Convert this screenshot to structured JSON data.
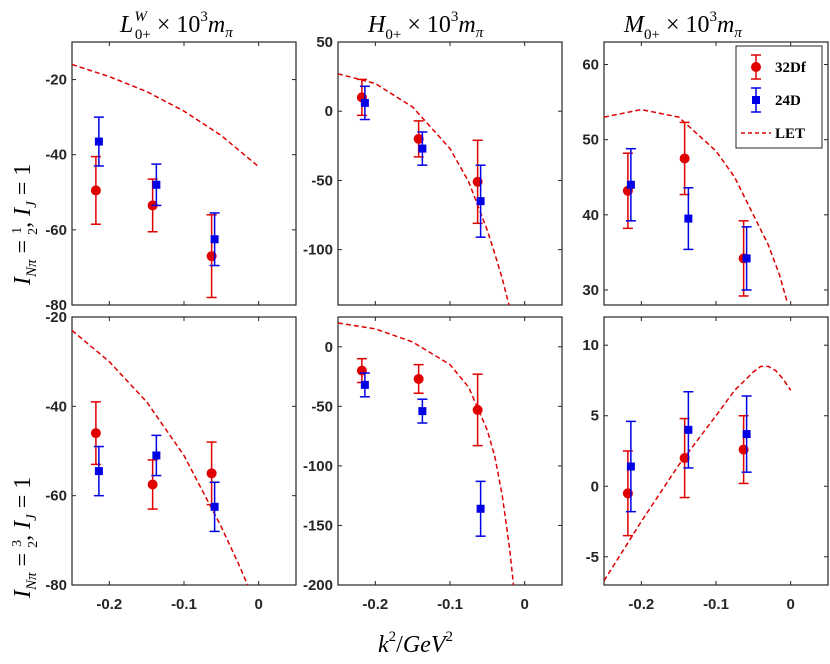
{
  "colors": {
    "red": "#e00000",
    "blue": "#0000e6",
    "axis": "#262626"
  },
  "titles": {
    "col1": {
      "main": "L",
      "sup": "W",
      "sub": "0+",
      "rest": " × 10",
      "exp": "3",
      "m": "m",
      "msub": "π"
    },
    "col2": {
      "main": "H",
      "sub": "0+",
      "rest": " × 10",
      "exp": "3",
      "m": "m",
      "msub": "π"
    },
    "col3": {
      "main": "M",
      "sub": "0+",
      "rest": " × 10",
      "exp": "3",
      "m": "m",
      "msub": "π"
    }
  },
  "row_labels": {
    "row1": {
      "I": "I",
      "sub": "Nπ",
      "eq": " = ",
      "num": "1",
      "den": "2",
      "rest": ", ",
      "I2": "I",
      "sub2": "J",
      "eq2": " = 1"
    },
    "row2": {
      "I": "I",
      "sub": "Nπ",
      "eq": " = ",
      "num": "3",
      "den": "2",
      "rest": ", ",
      "I2": "I",
      "sub2": "J",
      "eq2": " = 1"
    }
  },
  "xlabel": {
    "k": "k",
    "exp": "2",
    "slash": "/",
    "gev": "GeV",
    "exp2": "2"
  },
  "legend": {
    "items": [
      {
        "label": "32Df",
        "color": "red",
        "marker": "circle"
      },
      {
        "label": "24D",
        "color": "blue",
        "marker": "square"
      },
      {
        "label": "LET",
        "color": "red",
        "marker": "dashed-line"
      }
    ]
  },
  "chart_data": [
    {
      "type": "scatter",
      "id": "L_half",
      "xlim": [
        -0.25,
        0.05
      ],
      "ylim": [
        -80,
        -10
      ],
      "xticks": [
        -0.2,
        -0.1,
        0
      ],
      "xtick_labels": [
        "-0.2",
        "-0.1",
        "0"
      ],
      "show_xtick_labels": false,
      "yticks": [
        -20,
        -40,
        -60,
        -80
      ],
      "ytick_labels": [
        "-20",
        "-40",
        "-60",
        "-80"
      ],
      "series": [
        {
          "name": "32Df",
          "x": [
            -0.218,
            -0.142,
            -0.063
          ],
          "y": [
            -49.5,
            -53.5,
            -67
          ],
          "err_lo": [
            9,
            7,
            11
          ],
          "err_hi": [
            9,
            7,
            11
          ]
        },
        {
          "name": "24D",
          "x": [
            -0.214,
            -0.137,
            -0.059
          ],
          "y": [
            -36.5,
            -48,
            -62.5
          ],
          "err_lo": [
            6.5,
            5.5,
            7
          ],
          "err_hi": [
            6.5,
            5.5,
            7
          ]
        }
      ],
      "let": {
        "x": [
          -0.25,
          -0.2,
          -0.15,
          -0.1,
          -0.05,
          0
        ],
        "y": [
          -16,
          -19.2,
          -23.2,
          -28.4,
          -34.9,
          -43.2
        ]
      }
    },
    {
      "type": "scatter",
      "id": "H_half",
      "xlim": [
        -0.25,
        0.05
      ],
      "ylim": [
        -140,
        50
      ],
      "xticks": [
        -0.2,
        -0.1,
        0
      ],
      "xtick_labels": [
        "-0.2",
        "-0.1",
        "0"
      ],
      "show_xtick_labels": false,
      "yticks": [
        50,
        0,
        -50,
        -100
      ],
      "ytick_labels": [
        "50",
        "0",
        "-50",
        "-100"
      ],
      "series": [
        {
          "name": "32Df",
          "x": [
            -0.218,
            -0.142,
            -0.063
          ],
          "y": [
            10,
            -20,
            -51
          ],
          "err_lo": [
            13,
            13,
            30
          ],
          "err_hi": [
            13,
            13,
            30
          ]
        },
        {
          "name": "24D",
          "x": [
            -0.214,
            -0.137,
            -0.059
          ],
          "y": [
            6,
            -27,
            -65
          ],
          "err_lo": [
            12,
            12,
            26
          ],
          "err_hi": [
            12,
            12,
            26
          ]
        }
      ],
      "let": {
        "x": [
          -0.25,
          -0.2,
          -0.15,
          -0.1,
          -0.075,
          -0.05,
          -0.04,
          -0.03,
          -0.02
        ],
        "y": [
          27,
          20,
          3,
          -27,
          -51,
          -86,
          -103,
          -121,
          -142
        ]
      }
    },
    {
      "type": "scatter",
      "id": "M_half",
      "xlim": [
        -0.25,
        0.05
      ],
      "ylim": [
        28,
        63
      ],
      "xticks": [
        -0.2,
        -0.1,
        0
      ],
      "xtick_labels": [
        "-0.2",
        "-0.1",
        "0"
      ],
      "show_xtick_labels": false,
      "yticks": [
        60,
        50,
        40,
        30
      ],
      "ytick_labels": [
        "60",
        "50",
        "40",
        "30"
      ],
      "series": [
        {
          "name": "32Df",
          "x": [
            -0.218,
            -0.142,
            -0.063
          ],
          "y": [
            43.2,
            47.5,
            34.2
          ],
          "err_lo": [
            5,
            4.8,
            5
          ],
          "err_hi": [
            5,
            4.8,
            5
          ]
        },
        {
          "name": "24D",
          "x": [
            -0.214,
            -0.137,
            -0.059
          ],
          "y": [
            44,
            39.5,
            34.2
          ],
          "err_lo": [
            4.8,
            4.1,
            4.2
          ],
          "err_hi": [
            4.8,
            4.1,
            4.2
          ]
        }
      ],
      "let": {
        "x": [
          -0.25,
          -0.2,
          -0.15,
          -0.1,
          -0.075,
          -0.05,
          -0.03,
          -0.015,
          -0.005
        ],
        "y": [
          53,
          54,
          53,
          48.5,
          45,
          40,
          36,
          32,
          28.5
        ]
      }
    },
    {
      "type": "scatter",
      "id": "L_3half",
      "xlim": [
        -0.25,
        0.05
      ],
      "ylim": [
        -80,
        -20
      ],
      "xticks": [
        -0.2,
        -0.1,
        0
      ],
      "xtick_labels": [
        "-0.2",
        "-0.1",
        "0"
      ],
      "show_xtick_labels": true,
      "yticks": [
        -20,
        -40,
        -60,
        -80
      ],
      "ytick_labels": [
        "-20",
        "-40",
        "-60",
        "-80"
      ],
      "series": [
        {
          "name": "32Df",
          "x": [
            -0.218,
            -0.142,
            -0.063
          ],
          "y": [
            -46,
            -57.5,
            -55
          ],
          "err_lo": [
            7,
            5.5,
            7
          ],
          "err_hi": [
            7,
            5.5,
            7
          ]
        },
        {
          "name": "24D",
          "x": [
            -0.214,
            -0.137,
            -0.059
          ],
          "y": [
            -54.5,
            -51,
            -62.5
          ],
          "err_lo": [
            5.5,
            4.5,
            5.5
          ],
          "err_hi": [
            5.5,
            4.5,
            5.5
          ]
        }
      ],
      "let": {
        "x": [
          -0.25,
          -0.2,
          -0.15,
          -0.1,
          -0.05,
          -0.025,
          -0.015
        ],
        "y": [
          -23,
          -30,
          -39,
          -51,
          -67,
          -76,
          -80
        ]
      }
    },
    {
      "type": "scatter",
      "id": "H_3half",
      "xlim": [
        -0.25,
        0.05
      ],
      "ylim": [
        -200,
        25
      ],
      "xticks": [
        -0.2,
        -0.1,
        0
      ],
      "xtick_labels": [
        "-0.2",
        "-0.1",
        "0"
      ],
      "show_xtick_labels": true,
      "yticks": [
        0,
        -50,
        -100,
        -150,
        -200
      ],
      "ytick_labels": [
        "0",
        "-50",
        "-100",
        "-150",
        "-200"
      ],
      "series": [
        {
          "name": "32Df",
          "x": [
            -0.218,
            -0.142,
            -0.063
          ],
          "y": [
            -20,
            -27,
            -53
          ],
          "err_lo": [
            10,
            12,
            30
          ],
          "err_hi": [
            10,
            12,
            30
          ]
        },
        {
          "name": "24D",
          "x": [
            -0.214,
            -0.137,
            -0.059
          ],
          "y": [
            -32,
            -54,
            -136
          ],
          "err_lo": [
            10,
            10,
            23
          ],
          "err_hi": [
            10,
            10,
            23
          ]
        }
      ],
      "let": {
        "x": [
          -0.25,
          -0.2,
          -0.15,
          -0.1,
          -0.075,
          -0.05,
          -0.04,
          -0.03,
          -0.02,
          -0.015
        ],
        "y": [
          20,
          15,
          4,
          -15,
          -34,
          -70,
          -92,
          -125,
          -170,
          -200
        ]
      }
    },
    {
      "type": "scatter",
      "id": "M_3half",
      "xlim": [
        -0.25,
        0.05
      ],
      "ylim": [
        -7,
        12
      ],
      "xticks": [
        -0.2,
        -0.1,
        0
      ],
      "xtick_labels": [
        "-0.2",
        "-0.1",
        "0"
      ],
      "show_xtick_labels": true,
      "yticks": [
        10,
        5,
        0,
        -5
      ],
      "ytick_labels": [
        "10",
        "5",
        "0",
        "-5"
      ],
      "series": [
        {
          "name": "32Df",
          "x": [
            -0.218,
            -0.142,
            -0.063
          ],
          "y": [
            -0.5,
            2,
            2.6
          ],
          "err_lo": [
            3,
            2.8,
            2.4
          ],
          "err_hi": [
            3,
            2.8,
            2.4
          ]
        },
        {
          "name": "24D",
          "x": [
            -0.214,
            -0.137,
            -0.059
          ],
          "y": [
            1.4,
            4,
            3.7
          ],
          "err_lo": [
            3.2,
            2.7,
            2.7
          ],
          "err_hi": [
            3.2,
            2.7,
            2.7
          ]
        }
      ],
      "let": {
        "x": [
          -0.25,
          -0.2,
          -0.15,
          -0.1,
          -0.075,
          -0.05,
          -0.04,
          -0.03,
          -0.02,
          -0.01,
          0
        ],
        "y": [
          -6.7,
          -2.5,
          1.5,
          5,
          6.8,
          8.1,
          8.5,
          8.5,
          8.2,
          7.6,
          6.8
        ]
      }
    }
  ]
}
